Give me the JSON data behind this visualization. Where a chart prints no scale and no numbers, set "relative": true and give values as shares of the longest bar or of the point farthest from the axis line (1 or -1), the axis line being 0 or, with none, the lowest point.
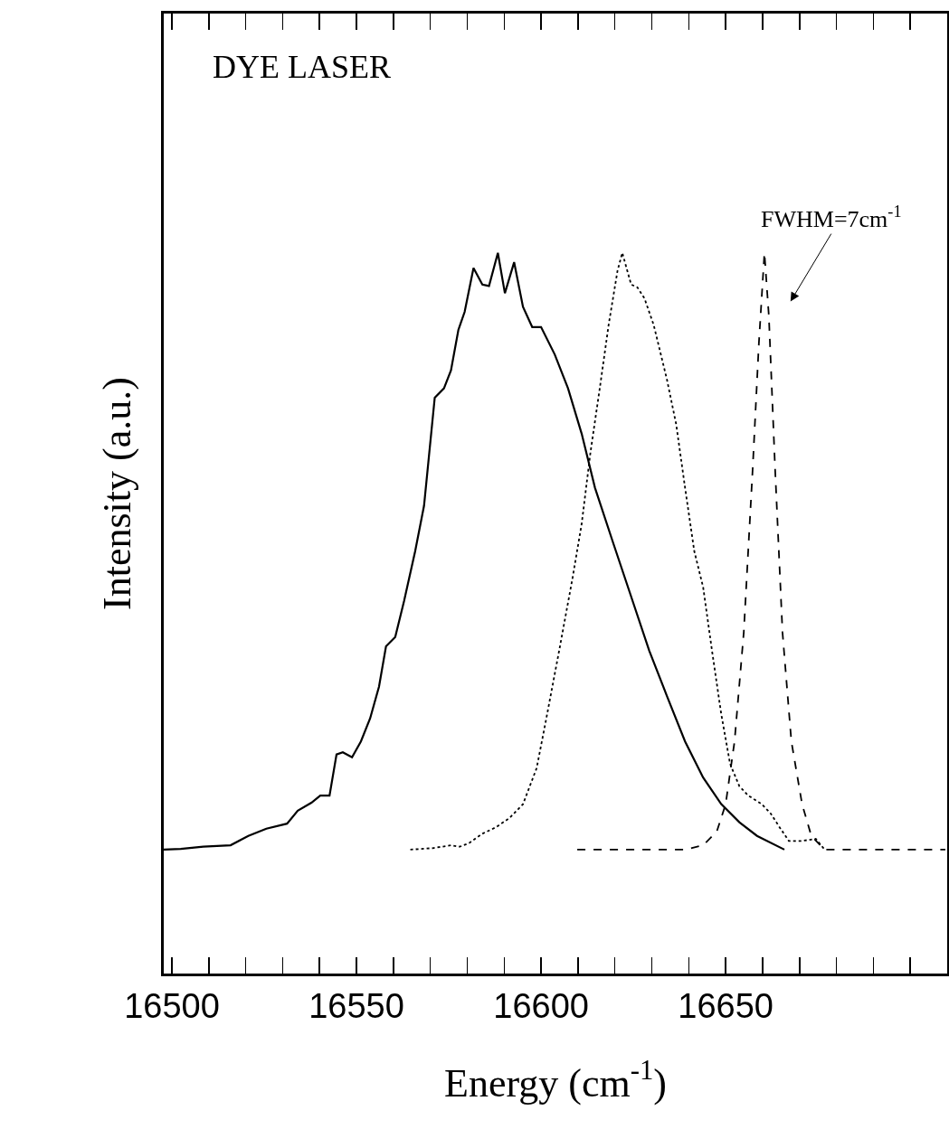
{
  "chart_data": {
    "type": "line",
    "relative": true,
    "xlabel": "Energy (cm$^{-1}$)",
    "ylabel": "Intensity (a.u.)",
    "annotations": [
      "DYE LASER",
      "FWHM=7cm$^{-1}$"
    ],
    "xlim": [
      16497.8,
      16710
    ],
    "xticks": [
      16500,
      16550,
      16600,
      16650
    ],
    "series": [
      {
        "color": "#000000",
        "line_style": "solid",
        "x": [
          16497.8,
          16502.4,
          16508.5,
          16515.9,
          16520.7,
          16525.6,
          16531.2,
          16534.1,
          16537.8,
          16540.2,
          16542.7,
          16544.6,
          16546.3,
          16548.8,
          16551.2,
          16553.7,
          16556.1,
          16558.0,
          16560.5,
          16562.9,
          16565.9,
          16568.3,
          16571.2,
          16573.7,
          16575.6,
          16577.6,
          16579.3,
          16581.7,
          16584.1,
          16585.9,
          16588.3,
          16590.2,
          16592.7,
          16595.1,
          16597.6,
          16600.0,
          16603.7,
          16607.3,
          16611.0,
          16614.6,
          16619.5,
          16624.4,
          16629.3,
          16634.1,
          16639.0,
          16643.9,
          16648.8,
          16653.7,
          16658.5,
          16665.9
        ],
        "values": [
          0.172,
          0.173,
          0.176,
          0.178,
          0.191,
          0.201,
          0.208,
          0.226,
          0.237,
          0.247,
          0.247,
          0.304,
          0.307,
          0.3,
          0.322,
          0.354,
          0.398,
          0.454,
          0.467,
          0.517,
          0.586,
          0.649,
          0.799,
          0.812,
          0.837,
          0.893,
          0.918,
          0.979,
          0.956,
          0.954,
          1.0,
          0.944,
          0.987,
          0.925,
          0.897,
          0.897,
          0.859,
          0.812,
          0.749,
          0.674,
          0.598,
          0.523,
          0.448,
          0.385,
          0.322,
          0.272,
          0.235,
          0.21,
          0.191,
          0.172
        ]
      },
      {
        "color": "#000000",
        "line_style": "dotted",
        "x": [
          16564.6,
          16570.7,
          16575.6,
          16578.0,
          16580.5,
          16584.1,
          16587.8,
          16591.5,
          16595.1,
          16598.8,
          16601.2,
          16604.9,
          16608.5,
          16611.0,
          16613.4,
          16615.9,
          16618.3,
          16620.7,
          16622.0,
          16624.4,
          16626.1,
          16628.0,
          16630.5,
          16634.1,
          16636.6,
          16639.0,
          16641.5,
          16643.9,
          16646.3,
          16648.8,
          16651.2,
          16653.7,
          16656.1,
          16659.8,
          16662.2,
          16664.6,
          16667.1,
          16670.7,
          16674.4,
          16676.8
        ],
        "values": [
          0.172,
          0.174,
          0.178,
          0.176,
          0.181,
          0.194,
          0.203,
          0.216,
          0.235,
          0.285,
          0.348,
          0.448,
          0.548,
          0.624,
          0.724,
          0.812,
          0.9,
          0.975,
          1.0,
          0.956,
          0.952,
          0.937,
          0.9,
          0.824,
          0.762,
          0.674,
          0.586,
          0.536,
          0.448,
          0.36,
          0.291,
          0.26,
          0.247,
          0.235,
          0.222,
          0.203,
          0.184,
          0.184,
          0.187,
          0.172
        ]
      },
      {
        "color": "#000000",
        "line_style": "dashed",
        "x": [
          16609.8,
          16624.4,
          16639.0,
          16643.9,
          16647.6,
          16650.0,
          16652.4,
          16654.9,
          16657.3,
          16659.0,
          16660.5,
          16661.7,
          16663.4,
          16665.4,
          16667.8,
          16670.7,
          16673.2,
          16676.8,
          16687.8,
          16709.5
        ],
        "values": [
          0.172,
          0.172,
          0.172,
          0.178,
          0.197,
          0.235,
          0.322,
          0.473,
          0.699,
          0.875,
          1.0,
          0.912,
          0.699,
          0.473,
          0.322,
          0.235,
          0.191,
          0.172,
          0.172,
          0.172
        ]
      }
    ]
  }
}
